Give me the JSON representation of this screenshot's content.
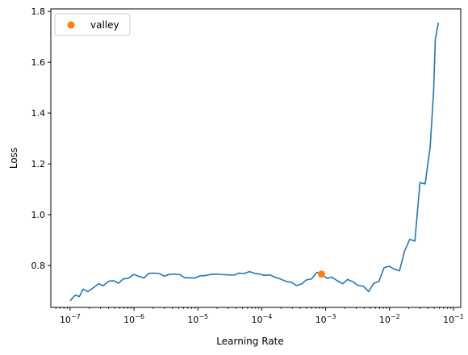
{
  "chart_data": {
    "type": "line",
    "title": "",
    "xlabel": "Learning Rate",
    "ylabel": "Loss",
    "xscale": "log",
    "xlim": [
      5e-08,
      0.13
    ],
    "ylim": [
      0.635,
      1.81
    ],
    "grid": false,
    "legend_position": "top-left",
    "x_ticks": [
      {
        "value": 1e-07,
        "label": "10",
        "exp": "−7"
      },
      {
        "value": 1e-06,
        "label": "10",
        "exp": "−6"
      },
      {
        "value": 1e-05,
        "label": "10",
        "exp": "−5"
      },
      {
        "value": 0.0001,
        "label": "10",
        "exp": "−4"
      },
      {
        "value": 0.001,
        "label": "10",
        "exp": "−3"
      },
      {
        "value": 0.01,
        "label": "10",
        "exp": "−2"
      },
      {
        "value": 0.1,
        "label": "10",
        "exp": "−1"
      }
    ],
    "y_ticks": [
      {
        "value": 0.8,
        "label": "0.8"
      },
      {
        "value": 1.0,
        "label": "1.0"
      },
      {
        "value": 1.2,
        "label": "1.2"
      },
      {
        "value": 1.4,
        "label": "1.4"
      },
      {
        "value": 1.6,
        "label": "1.6"
      },
      {
        "value": 1.8,
        "label": "1.8"
      }
    ],
    "series": [
      {
        "color": "#1f77b4",
        "x": [
          1e-07,
          1.2e-07,
          1.4e-07,
          1.6e-07,
          1.9e-07,
          2.3e-07,
          2.8e-07,
          3.3e-07,
          4e-07,
          4.8e-07,
          5.7e-07,
          6.8e-07,
          8.1e-07,
          1e-06,
          1.2e-06,
          1.45e-06,
          1.7e-06,
          2.1e-06,
          2.5e-06,
          3e-06,
          3.6e-06,
          4.3e-06,
          5.2e-06,
          6.2e-06,
          7.5e-06,
          9e-06,
          1.1e-05,
          1.3e-05,
          1.6e-05,
          2e-05,
          2.5e-05,
          3e-05,
          3.7e-05,
          4.4e-05,
          5.3e-05,
          6.4e-05,
          7.7e-05,
          9.3e-05,
          0.00011,
          0.000135,
          0.00016,
          0.0002,
          0.00024,
          0.00029,
          0.00035,
          0.00042,
          0.0005,
          0.0006,
          0.00073,
          0.00088,
          0.00105,
          0.00125,
          0.0015,
          0.00185,
          0.0022,
          0.00265,
          0.0032,
          0.0039,
          0.0047,
          0.0056,
          0.0068,
          0.0082,
          0.0099,
          0.0119,
          0.0143,
          0.0172,
          0.0207,
          0.0249,
          0.0299,
          0.036,
          0.0433,
          0.049,
          0.052,
          0.058
        ],
        "y": [
          0.661,
          0.683,
          0.678,
          0.707,
          0.697,
          0.712,
          0.728,
          0.72,
          0.738,
          0.74,
          0.73,
          0.747,
          0.749,
          0.765,
          0.757,
          0.751,
          0.769,
          0.77,
          0.768,
          0.758,
          0.765,
          0.766,
          0.764,
          0.752,
          0.751,
          0.751,
          0.76,
          0.76,
          0.765,
          0.766,
          0.764,
          0.763,
          0.762,
          0.77,
          0.768,
          0.776,
          0.769,
          0.766,
          0.761,
          0.763,
          0.754,
          0.746,
          0.737,
          0.734,
          0.721,
          0.727,
          0.743,
          0.747,
          0.773,
          0.765,
          0.749,
          0.754,
          0.741,
          0.728,
          0.745,
          0.736,
          0.722,
          0.718,
          0.697,
          0.729,
          0.737,
          0.791,
          0.797,
          0.785,
          0.779,
          0.857,
          0.903,
          0.896,
          1.126,
          1.121,
          1.268,
          1.49,
          1.69,
          1.755
        ]
      }
    ],
    "markers": [
      {
        "name": "valley",
        "x": 0.00086,
        "y": 0.766,
        "color": "#ff7f0e"
      }
    ]
  }
}
